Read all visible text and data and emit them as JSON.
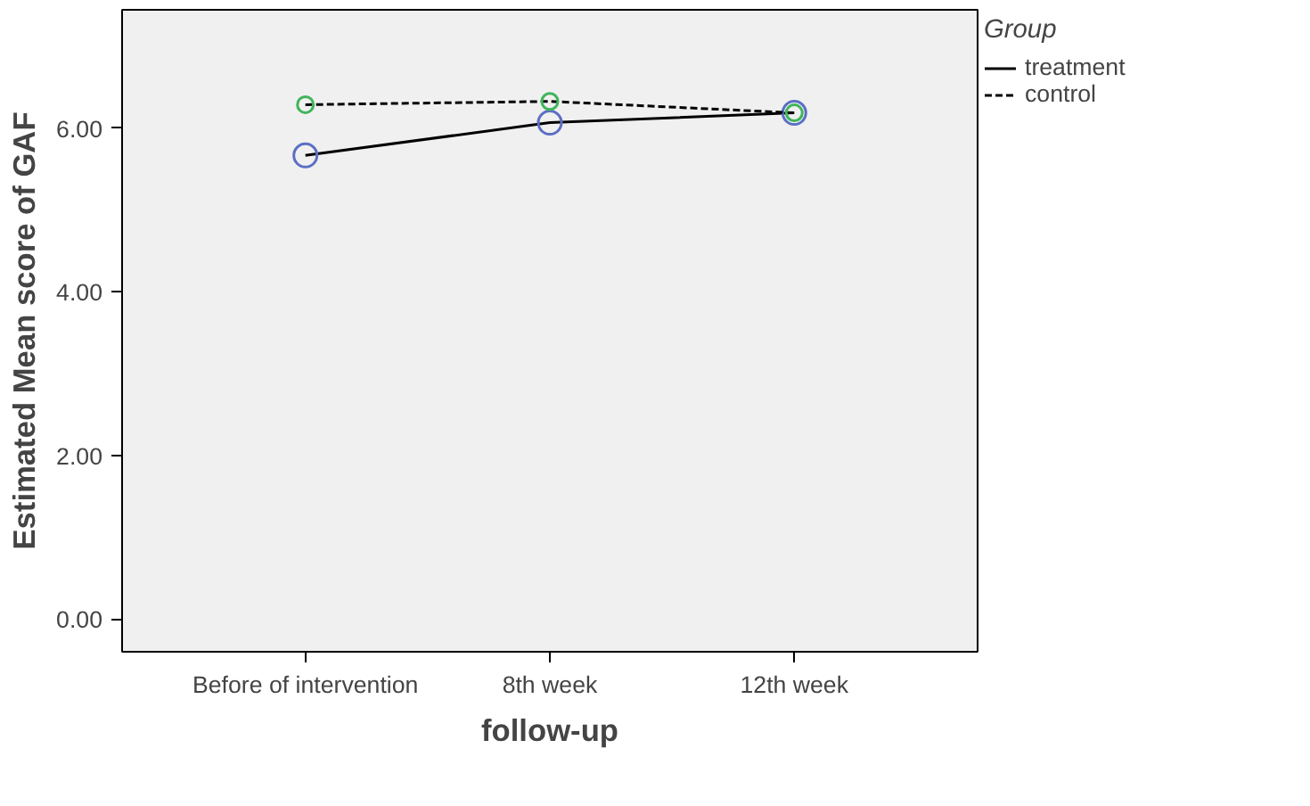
{
  "chart_data": {
    "type": "line",
    "xlabel": "follow-up",
    "ylabel": "Estimated Mean score of GAF",
    "legend_title": "Group",
    "legend": "right",
    "grid": false,
    "marker": "circle",
    "categories": [
      "Before of intervention",
      "8th week",
      "12th week"
    ],
    "ylim": [
      -0.4,
      7.45
    ],
    "yticks": [
      {
        "value": 0,
        "label": "0.00"
      },
      {
        "value": 2,
        "label": "2.00"
      },
      {
        "value": 4,
        "label": "4.00"
      },
      {
        "value": 6,
        "label": "6.00"
      }
    ],
    "series": [
      {
        "name": "treatment",
        "color": "#000000",
        "line_style": "solid",
        "colors": [
          "#5b6fc4",
          "#5b6fc4",
          "#5b6fc4"
        ],
        "values": [
          5.67,
          6.07,
          6.19
        ]
      },
      {
        "name": "control",
        "color": "#000000",
        "line_style": "dashed",
        "colors": [
          "#3fb45a",
          "#3fb45a",
          "#3fb45a"
        ],
        "values": [
          6.29,
          6.33,
          6.19
        ]
      }
    ]
  }
}
